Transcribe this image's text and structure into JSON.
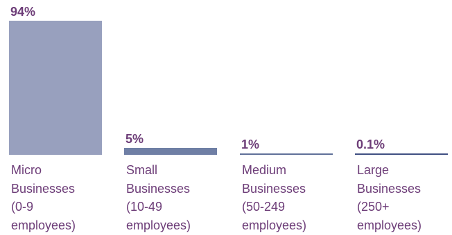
{
  "chart_data": {
    "type": "bar",
    "categories": [
      [
        "Micro",
        "Businesses",
        "(0-9",
        "employees)"
      ],
      [
        "Small",
        "Businesses",
        "(10-49",
        "employees)"
      ],
      [
        "Medium",
        "Businesses",
        "(50-249",
        "employees)"
      ],
      [
        "Large",
        "Businesses",
        "(250+",
        "employees)"
      ]
    ],
    "values": [
      94,
      5,
      1,
      0.1
    ],
    "value_labels": [
      "94%",
      "5%",
      "1%",
      "0.1%"
    ],
    "unit": "%",
    "title": "",
    "xlabel": "",
    "ylabel": "",
    "ylim": [
      0,
      94
    ],
    "grid": false,
    "legend": "none",
    "colors": {
      "bars": [
        "#98a0be",
        "#6f7fa5",
        "#5f6f98",
        "#3f4f82"
      ],
      "value_label": "#6d3d78",
      "category_label": "#6d3d78"
    }
  }
}
